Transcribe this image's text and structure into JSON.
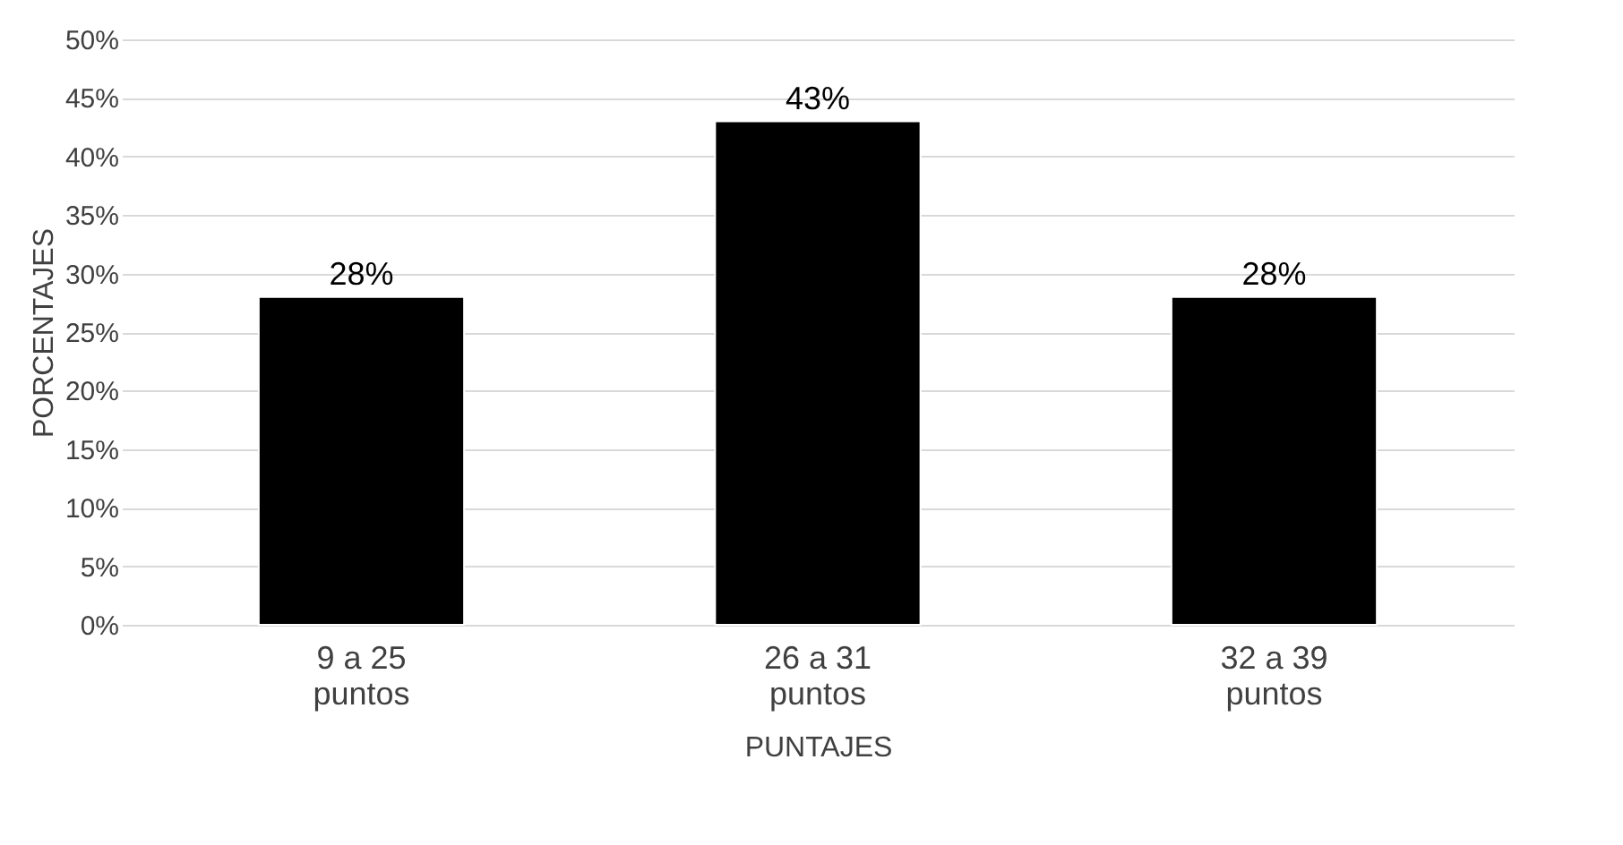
{
  "chart_data": {
    "type": "bar",
    "xlabel": "PUNTAJES",
    "ylabel": "PORCENTAJES",
    "categories": [
      "9 a 25 puntos",
      "26 a 31 puntos",
      "32 a 39 puntos"
    ],
    "values": [
      28,
      43,
      28
    ],
    "value_labels": [
      "28%",
      "43%",
      "28%"
    ],
    "color": "#000000",
    "ylim": [
      0,
      50
    ],
    "yticks": [
      {
        "value": 0,
        "label": "0%"
      },
      {
        "value": 5,
        "label": "5%"
      },
      {
        "value": 10,
        "label": "10%"
      },
      {
        "value": 15,
        "label": "15%"
      },
      {
        "value": 20,
        "label": "20%"
      },
      {
        "value": 25,
        "label": "25%"
      },
      {
        "value": 30,
        "label": "30%"
      },
      {
        "value": 35,
        "label": "35%"
      },
      {
        "value": 40,
        "label": "40%"
      },
      {
        "value": 45,
        "label": "45%"
      },
      {
        "value": 50,
        "label": "50%"
      }
    ],
    "grid": "y"
  }
}
